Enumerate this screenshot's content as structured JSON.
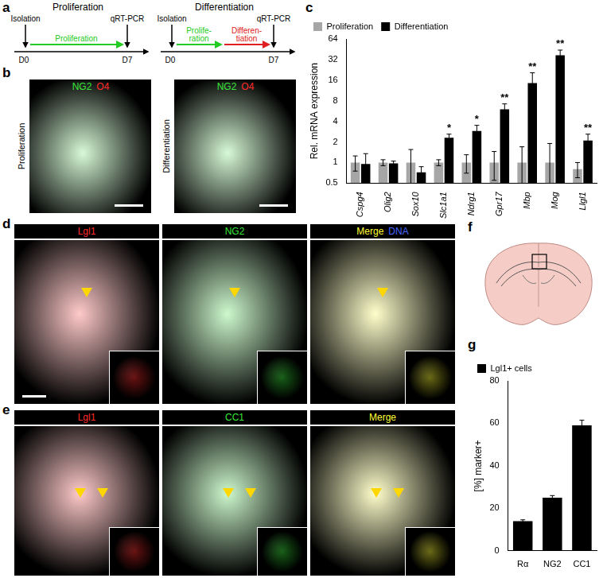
{
  "panels": {
    "a": {
      "label": "a",
      "diagrams": [
        {
          "title": "Proliferation",
          "start": "Isolation",
          "end": "qRT-PCR",
          "steps": [
            {
              "lines": [
                "Proliferation"
              ],
              "color": "#22cc22"
            }
          ],
          "axis_start": "D0",
          "axis_end": "D7"
        },
        {
          "title": "Differentiation",
          "start": "Isolation",
          "end": "qRT-PCR",
          "steps": [
            {
              "lines": [
                "Prolife-",
                "ration"
              ],
              "color": "#22cc22"
            },
            {
              "lines": [
                "Differen-",
                "tiation"
              ],
              "color": "#e02020"
            }
          ],
          "axis_start": "D0",
          "axis_end": "D7"
        }
      ]
    },
    "b": {
      "label": "b",
      "stains": [
        {
          "text": "NG2",
          "color": "#39e639"
        },
        {
          "text": "O4",
          "color": "#ff2a2a"
        }
      ],
      "images": [
        "Proliferation",
        "Differentiation"
      ]
    },
    "c": {
      "label": "c"
    },
    "d": {
      "label": "d",
      "images": [
        [
          {
            "text": "Lgl1",
            "color": "#ff2a2a"
          }
        ],
        [
          {
            "text": "NG2",
            "color": "#39e639"
          }
        ],
        [
          {
            "text": "Merge",
            "color": "#ffff33"
          },
          {
            "text": "DNA",
            "color": "#4466ff"
          }
        ]
      ]
    },
    "e": {
      "label": "e",
      "images": [
        [
          {
            "text": "Lgl1",
            "color": "#ff2a2a"
          }
        ],
        [
          {
            "text": "CC1",
            "color": "#39e639"
          }
        ],
        [
          {
            "text": "Merge",
            "color": "#ffff33"
          }
        ]
      ]
    },
    "f": {
      "label": "f"
    },
    "g": {
      "label": "g"
    }
  },
  "chart_data": [
    {
      "type": "bar",
      "log": "y",
      "categories": [
        "Cspg4",
        "Olig2",
        "Sox10",
        "Slc1a1",
        "Ndrg1",
        "Gpr17",
        "Mbp",
        "Mog",
        "Llgl1"
      ],
      "series": [
        {
          "name": "Proliferation",
          "color": "#a6a6a6",
          "values": [
            1,
            1,
            1,
            1,
            1,
            1,
            1,
            1,
            0.8
          ],
          "errors": [
            0.25,
            0.1,
            0.55,
            0.1,
            0.3,
            0.45,
            0.7,
            0.9,
            0.2
          ]
        },
        {
          "name": "Differentiation",
          "color": "#000000",
          "values": [
            0.95,
            0.97,
            0.72,
            2.3,
            2.9,
            6,
            14.5,
            37,
            2.1
          ],
          "errors": [
            0.4,
            0.08,
            0.15,
            0.3,
            0.6,
            1.2,
            6,
            7,
            0.5
          ],
          "annotations": [
            null,
            null,
            null,
            "*",
            "*",
            "**",
            "**",
            "**",
            "**"
          ]
        }
      ],
      "ylabel": "Rel. mRNA expression",
      "ylim": [
        0.5,
        64
      ],
      "yticks": [
        0.5,
        1,
        2,
        4,
        8,
        16,
        32,
        64
      ],
      "legend": "top-left",
      "grid": false
    },
    {
      "type": "bar",
      "categories": [
        "Rα",
        "NG2",
        "CC1"
      ],
      "series": [
        {
          "name": "Lgl1+ cells",
          "color": "#000000",
          "values": [
            14,
            25,
            59
          ],
          "errors": [
            0.6,
            1,
            2.5
          ]
        }
      ],
      "ylabel": "[%] marker+",
      "ylim": [
        0,
        80
      ],
      "yticks": [
        0,
        20,
        40,
        60,
        80
      ],
      "legend": "top-left",
      "grid": false
    }
  ]
}
